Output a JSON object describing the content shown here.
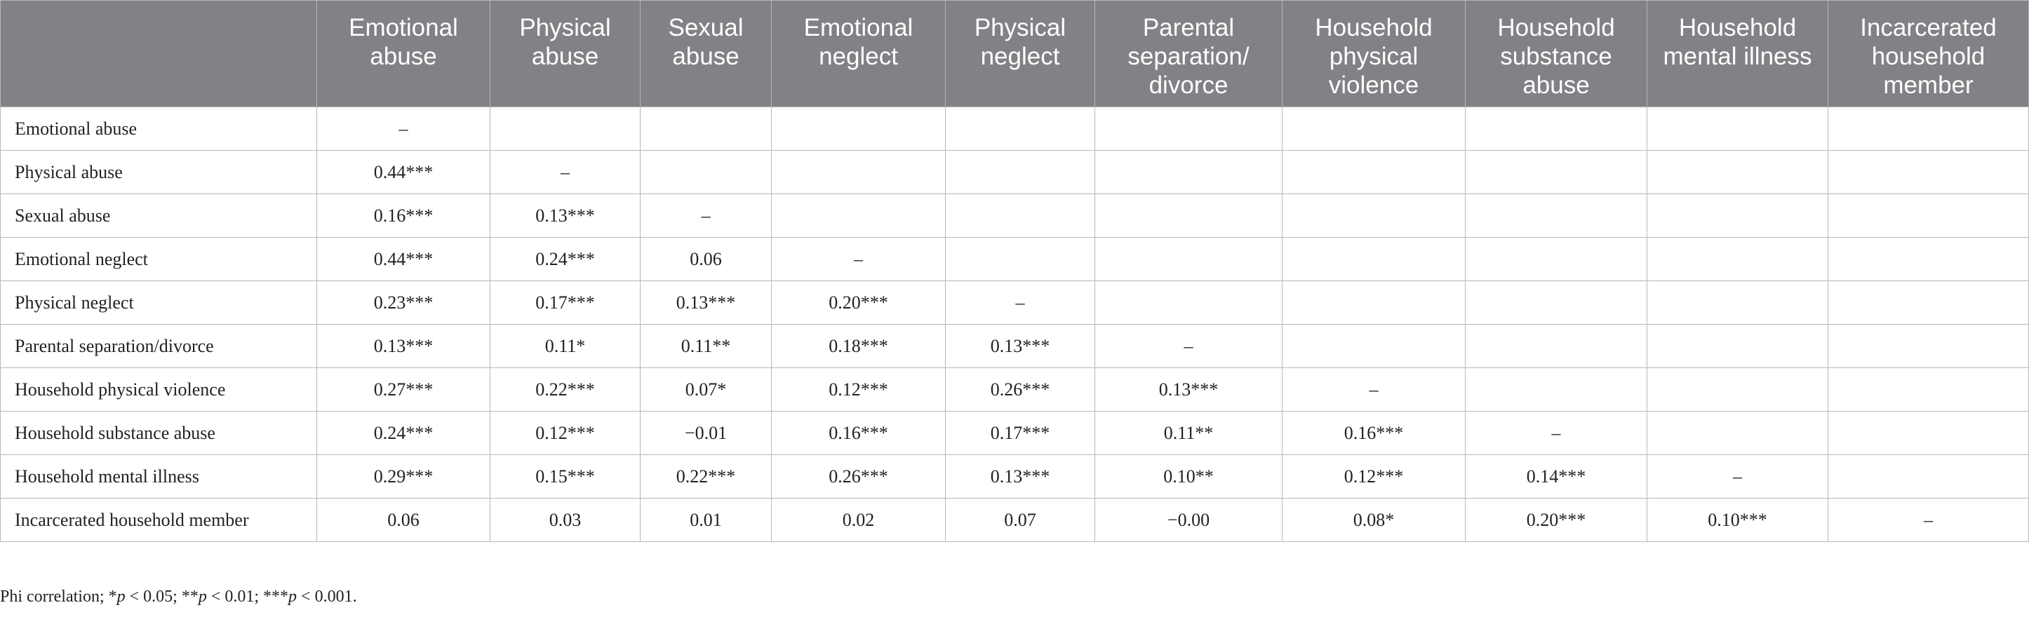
{
  "table": {
    "corner": "",
    "columns": [
      "Emotional abuse",
      "Physical abuse",
      "Sexual abuse",
      "Emotional neglect",
      "Physical neglect",
      "Parental separation/ divorce",
      "Household physical violence",
      "Household substance abuse",
      "Household mental illness",
      "Incarcerated household member"
    ],
    "rows": [
      {
        "label": "Emotional abuse",
        "cells": [
          "–",
          "",
          "",
          "",
          "",
          "",
          "",
          "",
          "",
          ""
        ]
      },
      {
        "label": "Physical abuse",
        "cells": [
          "0.44***",
          "–",
          "",
          "",
          "",
          "",
          "",
          "",
          "",
          ""
        ]
      },
      {
        "label": "Sexual abuse",
        "cells": [
          "0.16***",
          "0.13***",
          "–",
          "",
          "",
          "",
          "",
          "",
          "",
          ""
        ]
      },
      {
        "label": "Emotional neglect",
        "cells": [
          "0.44***",
          "0.24***",
          "0.06",
          "–",
          "",
          "",
          "",
          "",
          "",
          ""
        ]
      },
      {
        "label": "Physical neglect",
        "cells": [
          "0.23***",
          "0.17***",
          "0.13***",
          "0.20***",
          "–",
          "",
          "",
          "",
          "",
          ""
        ]
      },
      {
        "label": "Parental separation/divorce",
        "cells": [
          "0.13***",
          "0.11*",
          "0.11**",
          "0.18***",
          "0.13***",
          "–",
          "",
          "",
          "",
          ""
        ]
      },
      {
        "label": "Household physical violence",
        "cells": [
          "0.27***",
          "0.22***",
          "0.07*",
          "0.12***",
          "0.26***",
          "0.13***",
          "–",
          "",
          "",
          ""
        ]
      },
      {
        "label": "Household substance abuse",
        "cells": [
          "0.24***",
          "0.12***",
          "−0.01",
          "0.16***",
          "0.17***",
          "0.11**",
          "0.16***",
          "–",
          "",
          ""
        ]
      },
      {
        "label": "Household mental illness",
        "cells": [
          "0.29***",
          "0.15***",
          "0.22***",
          "0.26***",
          "0.13***",
          "0.10**",
          "0.12***",
          "0.14***",
          "–",
          ""
        ]
      },
      {
        "label": "Incarcerated household member",
        "cells": [
          "0.06",
          "0.03",
          "0.01",
          "0.02",
          "0.07",
          "−0.00",
          "0.08*",
          "0.20***",
          "0.10***",
          "–"
        ]
      }
    ]
  },
  "footnote": {
    "prefix": "Phi correlation; *",
    "p1": "p",
    "t1": " < 0.05; **",
    "p2": "p",
    "t2": " < 0.01; ***",
    "p3": "p",
    "t3": " < 0.001."
  }
}
